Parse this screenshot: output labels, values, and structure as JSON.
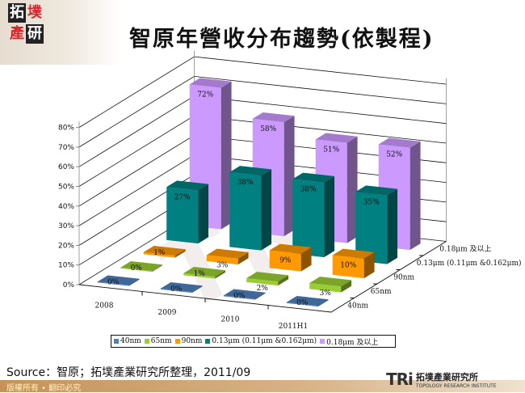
{
  "header": {
    "logo_chars": [
      "拓",
      "墣",
      "產",
      "研"
    ],
    "title": "智原年營收分布趨勢(依製程)"
  },
  "chart_data": {
    "type": "bar",
    "subtype": "3d-column",
    "title": "智原年營收分布趨勢(依製程)",
    "categories": [
      "2008",
      "2009",
      "2010",
      "2011H1"
    ],
    "series": [
      {
        "name": "40nm",
        "color": "#4f81bd",
        "values": [
          0,
          0,
          0,
          0
        ]
      },
      {
        "name": "65nm",
        "color": "#9acd32",
        "values": [
          0,
          1,
          2,
          3
        ]
      },
      {
        "name": "90nm",
        "color": "#ff9900",
        "values": [
          1,
          3,
          9,
          10
        ]
      },
      {
        "name": "0.13μm (0.11μm &0.162μm)",
        "color": "#008080",
        "values": [
          27,
          38,
          38,
          35
        ]
      },
      {
        "name": "0.18μm 及以上",
        "color": "#cc99ff",
        "values": [
          72,
          58,
          51,
          52
        ]
      }
    ],
    "y_ticks": [
      "0%",
      "10%",
      "20%",
      "30%",
      "40%",
      "50%",
      "60%",
      "70%",
      "80%"
    ],
    "ylim": [
      0,
      80
    ],
    "unit": "%",
    "depth_axis_labels": [
      "40nm",
      "65nm",
      "90nm",
      "0.13μm (0.11μm &0.162μm)",
      "0.18μm 及以上"
    ],
    "data_labels": {
      "40nm": [
        "0%",
        "0%",
        "0%",
        "0%"
      ],
      "65nm": [
        "0%",
        "1%",
        "2%",
        "3%"
      ],
      "90nm": [
        "1%",
        "3%",
        "9%",
        "10%"
      ],
      "0.13μm (0.11μm &0.162μm)": [
        "27%",
        "38%",
        "38%",
        "35%"
      ],
      "0.18μm 及以上": [
        "72%",
        "58%",
        "51%",
        "52%"
      ]
    },
    "legend_position": "bottom",
    "grid": true
  },
  "legend": [
    {
      "label": "40nm",
      "color": "#4f81bd"
    },
    {
      "label": "65nm",
      "color": "#9acd32"
    },
    {
      "label": "90nm",
      "color": "#ff9900"
    },
    {
      "label": "0.13μm (0.11μm &0.162μm)",
      "color": "#008080"
    },
    {
      "label": "0.18μm 及以上",
      "color": "#cc99ff"
    }
  ],
  "source": "Source：智原；拓墣產業研究所整理，2011/09",
  "footer": {
    "copyright": "版權所有 • 翻印必究",
    "org_mark": "TRi",
    "org_name_zh": "拓墣產業研究所",
    "org_name_en": "TOPOLOGY RESEARCH INSTITUTE"
  }
}
